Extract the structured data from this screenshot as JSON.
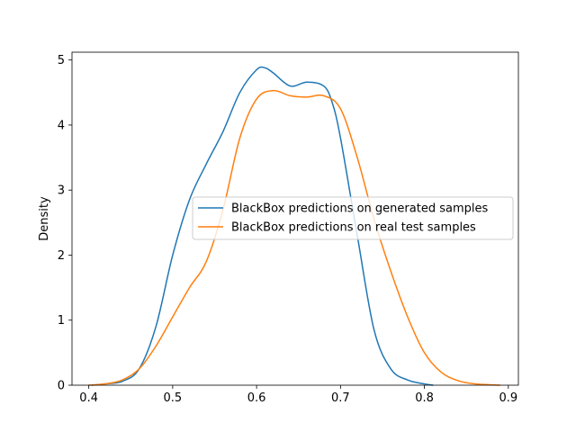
{
  "chart_data": {
    "type": "line",
    "title": "",
    "xlabel": "",
    "ylabel": "Density",
    "xlim": [
      0.38,
      0.912
    ],
    "ylim": [
      0,
      5.12
    ],
    "xticks": [
      {
        "value": 0.4,
        "label": "0.4"
      },
      {
        "value": 0.5,
        "label": "0.5"
      },
      {
        "value": 0.6,
        "label": "0.6"
      },
      {
        "value": 0.7,
        "label": "0.7"
      },
      {
        "value": 0.8,
        "label": "0.8"
      },
      {
        "value": 0.9,
        "label": "0.9"
      }
    ],
    "yticks": [
      {
        "value": 0,
        "label": "0"
      },
      {
        "value": 1,
        "label": "1"
      },
      {
        "value": 2,
        "label": "2"
      },
      {
        "value": 3,
        "label": "3"
      },
      {
        "value": 4,
        "label": "4"
      },
      {
        "value": 5,
        "label": "5"
      }
    ],
    "grid": false,
    "legend_position": "center-right",
    "series": [
      {
        "name": "BlackBox predictions on generated samples",
        "color": "#1f77b4",
        "x": [
          0.404,
          0.42,
          0.44,
          0.46,
          0.48,
          0.5,
          0.52,
          0.54,
          0.56,
          0.58,
          0.6,
          0.61,
          0.62,
          0.64,
          0.66,
          0.68,
          0.69,
          0.7,
          0.72,
          0.74,
          0.76,
          0.78,
          0.8,
          0.81
        ],
        "y": [
          0.0,
          0.02,
          0.06,
          0.25,
          0.9,
          2.0,
          2.85,
          3.4,
          3.9,
          4.5,
          4.85,
          4.88,
          4.8,
          4.6,
          4.66,
          4.6,
          4.35,
          3.8,
          2.3,
          0.85,
          0.25,
          0.08,
          0.02,
          0.0
        ]
      },
      {
        "name": "BlackBox predictions on real test samples",
        "color": "#ff7f0e",
        "x": [
          0.4,
          0.42,
          0.44,
          0.46,
          0.48,
          0.5,
          0.52,
          0.54,
          0.56,
          0.58,
          0.6,
          0.62,
          0.64,
          0.66,
          0.68,
          0.7,
          0.72,
          0.74,
          0.76,
          0.78,
          0.8,
          0.82,
          0.84,
          0.86,
          0.89
        ],
        "y": [
          0.0,
          0.02,
          0.08,
          0.25,
          0.6,
          1.05,
          1.5,
          1.9,
          2.7,
          3.8,
          4.4,
          4.53,
          4.45,
          4.43,
          4.45,
          4.25,
          3.5,
          2.55,
          1.75,
          1.05,
          0.5,
          0.2,
          0.07,
          0.02,
          0.0
        ]
      }
    ]
  }
}
